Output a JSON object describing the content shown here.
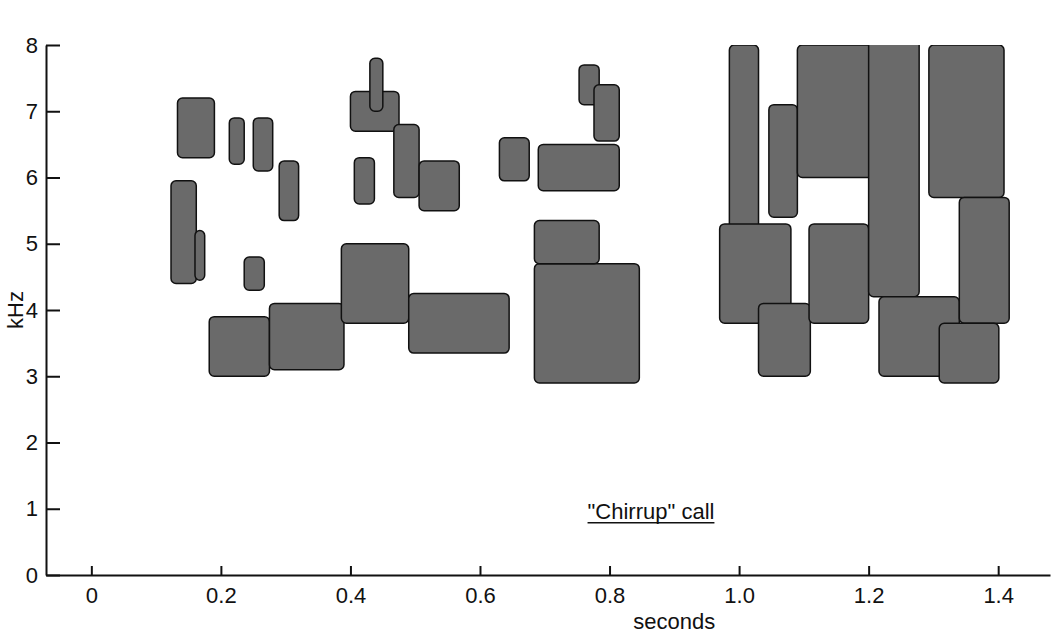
{
  "chart_data": {
    "type": "spectrogram",
    "x_label": "seconds",
    "y_label": "kHz",
    "annotations": [
      "\"Chirrup\" call"
    ],
    "color": "#6a6a6a",
    "xlim": [
      -0.07,
      1.48
    ],
    "xticks": [
      0,
      0.2,
      0.4,
      0.6,
      0.8,
      {
        "value": 1,
        "label": "1.0"
      },
      1.2,
      1.4
    ],
    "ylim": [
      0,
      8
    ],
    "yticks": [
      0,
      1,
      2,
      3,
      4,
      5,
      6,
      7,
      8
    ],
    "segments": [
      {
        "x": [
          0.123,
          0.162
        ],
        "y": [
          4.4,
          5.95
        ]
      },
      {
        "x": [
          0.133,
          0.19
        ],
        "y": [
          6.3,
          7.2
        ]
      },
      {
        "x": [
          0.16,
          0.175
        ],
        "y": [
          4.45,
          5.2
        ]
      },
      {
        "x": [
          0.182,
          0.275
        ],
        "y": [
          3.0,
          3.9
        ]
      },
      {
        "x": [
          0.275,
          0.39
        ],
        "y": [
          3.1,
          4.1
        ]
      },
      {
        "x": [
          0.213,
          0.236
        ],
        "y": [
          6.2,
          6.9
        ]
      },
      {
        "x": [
          0.25,
          0.28
        ],
        "y": [
          6.1,
          6.9
        ]
      },
      {
        "x": [
          0.29,
          0.32
        ],
        "y": [
          5.35,
          6.25
        ]
      },
      {
        "x": [
          0.236,
          0.267
        ],
        "y": [
          4.3,
          4.8
        ]
      },
      {
        "x": [
          0.386,
          0.49
        ],
        "y": [
          3.8,
          5.0
        ]
      },
      {
        "x": [
          0.49,
          0.645
        ],
        "y": [
          3.35,
          4.25
        ]
      },
      {
        "x": [
          0.4,
          0.475
        ],
        "y": [
          6.7,
          7.3
        ]
      },
      {
        "x": [
          0.43,
          0.45
        ],
        "y": [
          7.0,
          7.8
        ]
      },
      {
        "x": [
          0.406,
          0.437
        ],
        "y": [
          5.6,
          6.3
        ]
      },
      {
        "x": [
          0.467,
          0.506
        ],
        "y": [
          5.7,
          6.8
        ]
      },
      {
        "x": [
          0.506,
          0.568
        ],
        "y": [
          5.5,
          6.25
        ]
      },
      {
        "x": [
          0.63,
          0.676
        ],
        "y": [
          5.95,
          6.6
        ]
      },
      {
        "x": [
          0.684,
          0.846
        ],
        "y": [
          2.9,
          4.7
        ]
      },
      {
        "x": [
          0.684,
          0.784
        ],
        "y": [
          4.7,
          5.35
        ]
      },
      {
        "x": [
          0.69,
          0.815
        ],
        "y": [
          5.8,
          6.5
        ]
      },
      {
        "x": [
          0.753,
          0.784
        ],
        "y": [
          7.1,
          7.7
        ]
      },
      {
        "x": [
          0.776,
          0.815
        ],
        "y": [
          6.55,
          7.4
        ]
      },
      {
        "x": [
          0.985,
          1.03
        ],
        "y": [
          4.7,
          8.0
        ]
      },
      {
        "x": [
          0.97,
          1.08
        ],
        "y": [
          3.8,
          5.3
        ]
      },
      {
        "x": [
          1.03,
          1.11
        ],
        "y": [
          3.0,
          4.1
        ]
      },
      {
        "x": [
          1.046,
          1.09
        ],
        "y": [
          5.4,
          7.1
        ]
      },
      {
        "x": [
          1.09,
          1.216
        ],
        "y": [
          6.0,
          8.0
        ]
      },
      {
        "x": [
          1.108,
          1.2
        ],
        "y": [
          3.8,
          5.3
        ]
      },
      {
        "x": [
          1.2,
          1.278
        ],
        "y": [
          4.2,
          8.1
        ]
      },
      {
        "x": [
          1.216,
          1.34
        ],
        "y": [
          3.0,
          4.2
        ]
      },
      {
        "x": [
          1.293,
          1.409
        ],
        "y": [
          5.7,
          8.0
        ]
      },
      {
        "x": [
          1.34,
          1.417
        ],
        "y": [
          3.8,
          5.7
        ]
      },
      {
        "x": [
          1.309,
          1.401
        ],
        "y": [
          2.9,
          3.8
        ]
      }
    ]
  }
}
